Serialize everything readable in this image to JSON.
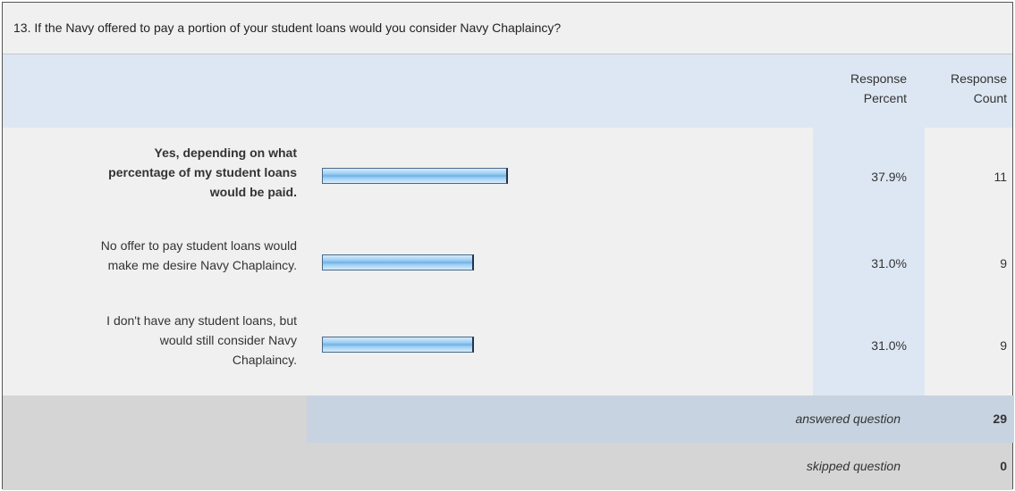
{
  "question": {
    "title": "13. If the Navy offered to pay a portion of your student loans would you consider Navy Chaplaincy?"
  },
  "headers": {
    "response_percent": [
      "Response",
      "Percent"
    ],
    "response_count": [
      "Response",
      "Count"
    ]
  },
  "rows": [
    {
      "label_lines": [
        "Yes, depending on what",
        "percentage of my student loans",
        "would be paid."
      ],
      "percent_text": "37.9%",
      "count_text": "11"
    },
    {
      "label_lines": [
        "No offer to pay student loans would",
        "make me desire Navy Chaplaincy."
      ],
      "percent_text": "31.0%",
      "count_text": "9"
    },
    {
      "label_lines": [
        "I don't have any student loans, but",
        "would still consider Navy",
        "Chaplaincy."
      ],
      "percent_text": "31.0%",
      "count_text": "9"
    }
  ],
  "footer": {
    "answered_label": "answered question",
    "answered_value": "29",
    "skipped_label": "skipped question",
    "skipped_value": "0"
  },
  "chart_data": {
    "type": "bar",
    "orientation": "horizontal",
    "categories": [
      "Yes, depending on what percentage of my student loans would be paid.",
      "No offer to pay student loans would make me desire Navy Chaplaincy.",
      "I don't have any student loans, but would still consider Navy Chaplaincy."
    ],
    "values": [
      37.9,
      31.0,
      31.0
    ],
    "counts": [
      11,
      9,
      9
    ],
    "xlim": [
      0,
      100
    ],
    "colors": {
      "bar": "#8ec6f0",
      "bar_border": "#1f3550",
      "header_bg": "#dde7f3",
      "answered_bg": "#c7d3e0"
    }
  }
}
